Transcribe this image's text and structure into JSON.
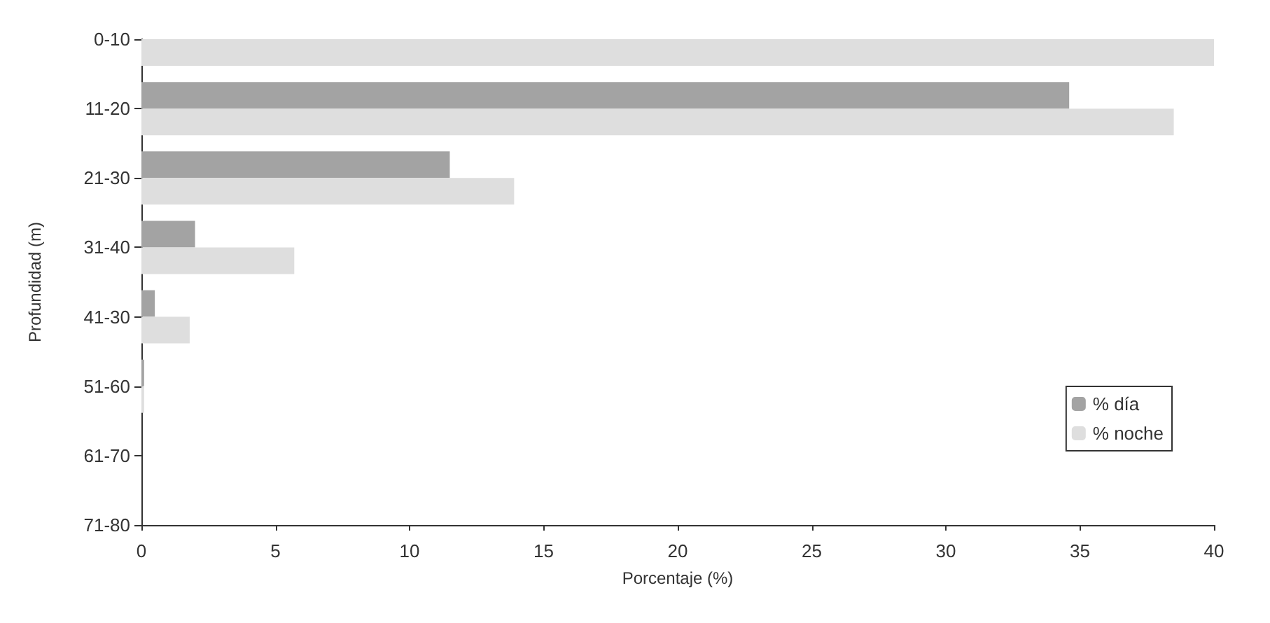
{
  "chart_data": {
    "type": "bar",
    "orientation": "horizontal",
    "xlabel": "Porcentaje (%)",
    "ylabel": "Profundidad (m)",
    "categories": [
      "0-10",
      "11-20",
      "21-30",
      "31-40",
      "41-30",
      "51-60",
      "61-70",
      "71-80"
    ],
    "series": [
      {
        "name": "% día",
        "color": "#a3a3a3",
        "values": [
          null,
          34.6,
          11.5,
          2.0,
          0.5,
          0.1,
          0,
          0
        ]
      },
      {
        "name": "% noche",
        "color": "#dedede",
        "values": [
          40,
          38.5,
          13.9,
          5.7,
          1.8,
          0.1,
          0,
          0
        ]
      }
    ],
    "xlim": [
      0,
      40
    ],
    "xticks": [
      0,
      5,
      10,
      15,
      20,
      25,
      30,
      35,
      40
    ],
    "grid": false,
    "legend": "right"
  }
}
